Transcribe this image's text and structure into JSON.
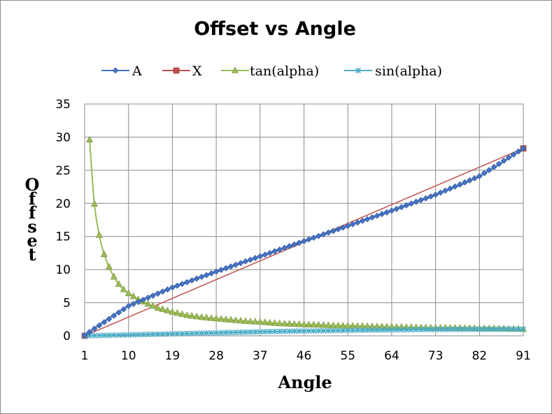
{
  "chart_data": {
    "type": "line",
    "title": "Offset vs Angle",
    "xlabel": "Angle",
    "ylabel": "Offset",
    "x_tick_labels": [
      "1",
      "10",
      "19",
      "28",
      "37",
      "46",
      "55",
      "64",
      "73",
      "82",
      "91"
    ],
    "x_tick_values": [
      1,
      10,
      19,
      28,
      37,
      46,
      55,
      64,
      73,
      82,
      91
    ],
    "y_tick_labels": [
      "0",
      "5",
      "10",
      "15",
      "20",
      "25",
      "30",
      "35"
    ],
    "xlim": [
      1,
      91
    ],
    "ylim": [
      0,
      35
    ],
    "grid": true,
    "legend_position": "top",
    "series": [
      {
        "name": "A",
        "color": "#4472c4",
        "marker": "diamond",
        "x": [
          1,
          10,
          19,
          28,
          37,
          46,
          55,
          64,
          73,
          82,
          91
        ],
        "values": [
          0.1,
          4.5,
          7.3,
          9.7,
          12.0,
          14.3,
          16.6,
          18.9,
          21.3,
          24.1,
          28.3
        ]
      },
      {
        "name": "X",
        "color": "#c0504d",
        "marker": "square",
        "x": [
          1,
          91
        ],
        "values": [
          0,
          28.3
        ]
      },
      {
        "name": "tan(alpha)",
        "color": "#9bbb59",
        "marker": "triangle",
        "x": [
          2,
          3,
          4,
          5,
          6,
          7,
          8,
          9,
          10,
          12,
          14,
          16,
          19,
          22,
          25,
          28,
          31,
          34,
          37,
          40,
          43,
          46,
          49,
          52,
          55,
          58,
          61,
          64,
          67,
          70,
          73,
          76,
          79,
          82,
          85,
          88,
          91
        ],
        "values": [
          29.6,
          19.9,
          15.2,
          12.3,
          10.4,
          8.9,
          7.8,
          7.0,
          6.4,
          5.5,
          4.8,
          4.2,
          3.6,
          3.1,
          2.8,
          2.6,
          2.4,
          2.2,
          2.1,
          1.9,
          1.8,
          1.7,
          1.65,
          1.55,
          1.5,
          1.45,
          1.4,
          1.35,
          1.3,
          1.25,
          1.2,
          1.2,
          1.15,
          1.1,
          1.1,
          1.05,
          1.0
        ]
      },
      {
        "name": "sin(alpha)",
        "color": "#4bacc6",
        "marker": "star",
        "x": [
          1,
          10,
          19,
          28,
          37,
          46,
          55,
          64,
          73,
          82,
          91
        ],
        "values": [
          0.0,
          0.15,
          0.3,
          0.45,
          0.6,
          0.72,
          0.82,
          0.9,
          0.96,
          0.99,
          1.0
        ]
      }
    ]
  }
}
